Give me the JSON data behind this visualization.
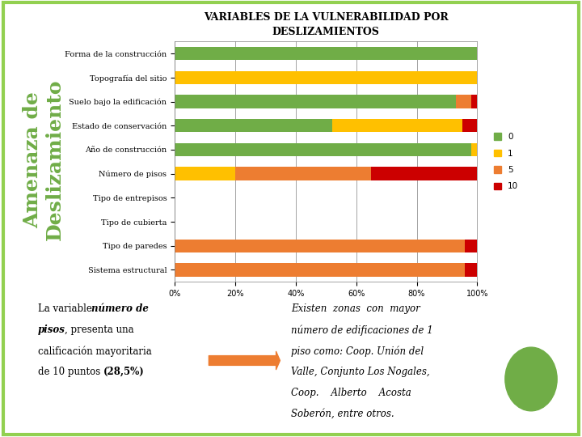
{
  "title": "VARIABLES DE LA VULNERABILIDAD POR\nDESLIZAMIENTOS",
  "categories": [
    "Forma de la construcción",
    "Topografía del sitio",
    "Suelo bajo la edificación",
    "Estado de conservación",
    "Año de construcción",
    "Número de pisos",
    "Tipo de entrepisos",
    "Tipo de cubierta",
    "Tipo de paredes",
    "Sistema estructural"
  ],
  "data_0": [
    100,
    0,
    93,
    52,
    98,
    0,
    0,
    0,
    0,
    0
  ],
  "data_1": [
    0,
    100,
    0,
    43,
    2,
    20,
    0,
    0,
    0,
    0
  ],
  "data_5": [
    0,
    0,
    5,
    0,
    0,
    45,
    0,
    0,
    96,
    96
  ],
  "data_10": [
    0,
    0,
    2,
    5,
    0,
    35,
    0,
    0,
    4,
    4
  ],
  "color_0": "#70AD47",
  "color_1": "#FFC000",
  "color_5": "#ED7D31",
  "color_10": "#CC0000",
  "background_color": "#FFFFFF",
  "border_color": "#92D050",
  "title_fontsize": 9,
  "tick_fontsize": 7,
  "ylabel_text": "Amenaza de\nDeslizamiento",
  "ylabel_color": "#70AD47",
  "ylabel_fontsize": 18,
  "right_text_line1": "Existen  zonas  con  mayor",
  "right_text_line2": "número de edificaciones de 1",
  "right_text_line3": "piso como: Coop. Unión del",
  "right_text_line4": "Valle, Conjunto Los Nogales,",
  "right_text_line5": "Coop.    Alberto    Acosta",
  "right_text_line6": "Soberón, entre otros.",
  "arrow_color": "#ED7D31",
  "circle_color": "#70AD47"
}
